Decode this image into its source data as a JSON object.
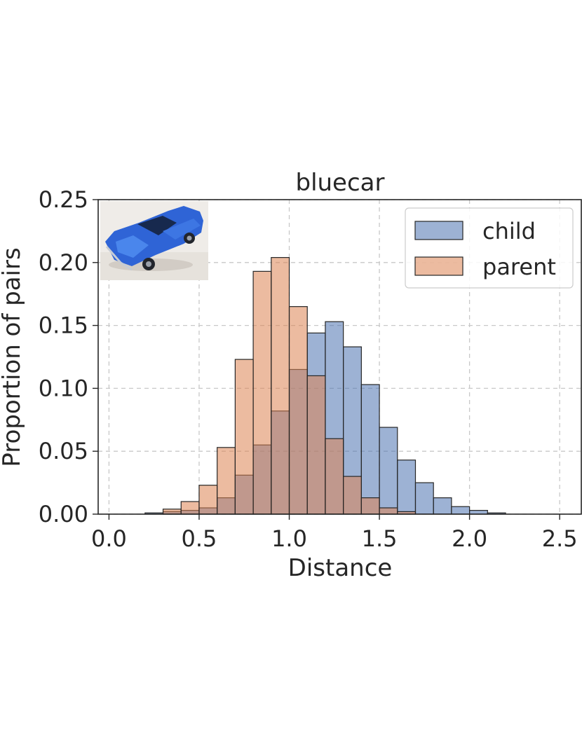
{
  "chart_data": {
    "type": "bar",
    "title": "bluecar",
    "xlabel": "Distance",
    "ylabel": "Proportion of pairs",
    "xlim": [
      -0.06,
      2.62
    ],
    "ylim": [
      0,
      0.25
    ],
    "xticks": [
      0.0,
      0.5,
      1.0,
      1.5,
      2.0,
      2.5
    ],
    "xtick_labels": [
      "0.0",
      "0.5",
      "1.0",
      "1.5",
      "2.0",
      "2.5"
    ],
    "yticks": [
      0.0,
      0.05,
      0.1,
      0.15,
      0.2,
      0.25
    ],
    "ytick_labels": [
      "0.00",
      "0.05",
      "0.10",
      "0.15",
      "0.20",
      "0.25"
    ],
    "grid": true,
    "legend_position": "top-right",
    "bin_width": 0.1,
    "series": [
      {
        "name": "child",
        "color": "#4c72b0",
        "bins": [
          [
            0.2,
            0.001
          ],
          [
            0.3,
            0.002
          ],
          [
            0.4,
            0.003
          ],
          [
            0.5,
            0.005
          ],
          [
            0.6,
            0.013
          ],
          [
            0.7,
            0.031
          ],
          [
            0.8,
            0.055
          ],
          [
            0.9,
            0.082
          ],
          [
            1.0,
            0.115
          ],
          [
            1.1,
            0.144
          ],
          [
            1.2,
            0.153
          ],
          [
            1.3,
            0.133
          ],
          [
            1.4,
            0.103
          ],
          [
            1.5,
            0.069
          ],
          [
            1.6,
            0.043
          ],
          [
            1.7,
            0.025
          ],
          [
            1.8,
            0.013
          ],
          [
            1.9,
            0.006
          ],
          [
            2.0,
            0.003
          ],
          [
            2.1,
            0.001
          ]
        ]
      },
      {
        "name": "parent",
        "color": "#dd8452",
        "bins": [
          [
            0.3,
            0.004
          ],
          [
            0.4,
            0.01
          ],
          [
            0.5,
            0.023
          ],
          [
            0.6,
            0.053
          ],
          [
            0.7,
            0.123
          ],
          [
            0.8,
            0.193
          ],
          [
            0.9,
            0.204
          ],
          [
            1.0,
            0.165
          ],
          [
            1.1,
            0.11
          ],
          [
            1.2,
            0.06
          ],
          [
            1.3,
            0.03
          ],
          [
            1.4,
            0.013
          ],
          [
            1.5,
            0.005
          ],
          [
            1.6,
            0.002
          ]
        ]
      }
    ]
  }
}
